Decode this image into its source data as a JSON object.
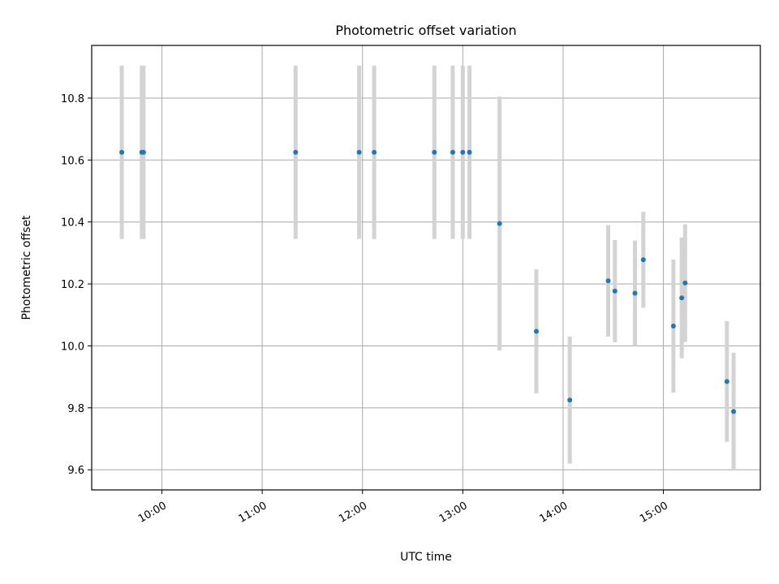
{
  "chart_data": {
    "type": "scatter",
    "title": "Photometric offset variation",
    "xlabel": "UTC time",
    "ylabel": "Photometric offset",
    "grid": true,
    "xlim": [
      "09:18",
      "15:58"
    ],
    "ylim": [
      9.535,
      10.97
    ],
    "xticks": [
      "10:00",
      "11:00",
      "12:00",
      "13:00",
      "14:00",
      "15:00"
    ],
    "yticks": [
      "9.6",
      "9.8",
      "10.0",
      "10.2",
      "10.4",
      "10.6",
      "10.8"
    ],
    "series": [
      {
        "marker_color": "#1f77b4",
        "errorbar_color": "#d3d3d3",
        "points": [
          {
            "x": "09:36",
            "y": 10.625,
            "yerr": 0.28
          },
          {
            "x": "09:48",
            "y": 10.625,
            "yerr": 0.28
          },
          {
            "x": "09:49",
            "y": 10.625,
            "yerr": 0.28
          },
          {
            "x": "11:20",
            "y": 10.625,
            "yerr": 0.28
          },
          {
            "x": "11:58",
            "y": 10.625,
            "yerr": 0.28
          },
          {
            "x": "12:07",
            "y": 10.625,
            "yerr": 0.28
          },
          {
            "x": "12:43",
            "y": 10.625,
            "yerr": 0.28
          },
          {
            "x": "12:54",
            "y": 10.625,
            "yerr": 0.28
          },
          {
            "x": "13:00",
            "y": 10.625,
            "yerr": 0.28
          },
          {
            "x": "13:04",
            "y": 10.625,
            "yerr": 0.28
          },
          {
            "x": "13:22",
            "y": 10.395,
            "yerr": 0.41
          },
          {
            "x": "13:44",
            "y": 10.047,
            "yerr": 0.2
          },
          {
            "x": "14:04",
            "y": 9.825,
            "yerr": 0.205
          },
          {
            "x": "14:27",
            "y": 10.21,
            "yerr": 0.18
          },
          {
            "x": "14:31",
            "y": 10.177,
            "yerr": 0.165
          },
          {
            "x": "14:43",
            "y": 10.17,
            "yerr": 0.17
          },
          {
            "x": "14:48",
            "y": 10.278,
            "yerr": 0.155
          },
          {
            "x": "15:06",
            "y": 10.064,
            "yerr": 0.215
          },
          {
            "x": "15:11",
            "y": 10.155,
            "yerr": 0.195
          },
          {
            "x": "15:13",
            "y": 10.203,
            "yerr": 0.19
          },
          {
            "x": "15:38",
            "y": 9.885,
            "yerr": 0.195
          },
          {
            "x": "15:42",
            "y": 9.788,
            "yerr": 0.19
          }
        ]
      }
    ]
  }
}
